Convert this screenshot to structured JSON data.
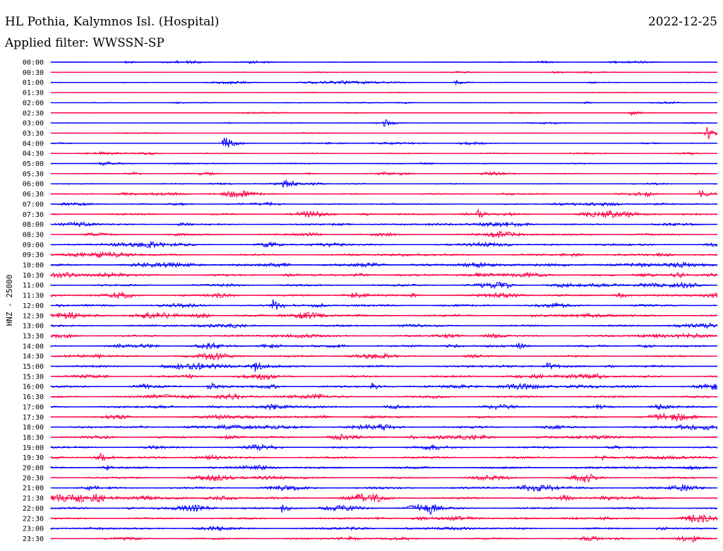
{
  "header": {
    "station": "HL Pothia, Kalymnos Isl. (Hospital)",
    "date": "2022-12-25",
    "filter": "Applied filter: WWSSN-SP"
  },
  "colors": {
    "even": "#0000ff",
    "odd": "#ff0044",
    "text": "#000000",
    "background": "#ffffff"
  },
  "chart_data": {
    "type": "line",
    "title": "HL Pothia, Kalymnos Isl. (Hospital)",
    "date": "2022-12-25",
    "ylabel": "HNZ - 25000",
    "trace_labels": [
      "00:00",
      "00:30",
      "01:00",
      "01:30",
      "02:00",
      "02:30",
      "03:00",
      "03:30",
      "04:00",
      "04:30",
      "05:00",
      "05:30",
      "06:00",
      "06:30",
      "07:00",
      "07:30",
      "08:00",
      "08:30",
      "09:00",
      "09:30",
      "10:00",
      "10:30",
      "11:00",
      "11:30",
      "12:00",
      "12:30",
      "13:00",
      "13:30",
      "14:00",
      "14:30",
      "15:00",
      "15:30",
      "16:00",
      "16:30",
      "17:00",
      "17:30",
      "18:00",
      "18:30",
      "19:00",
      "19:30",
      "20:00",
      "20:30",
      "21:00",
      "21:30",
      "22:00",
      "22:30",
      "23:00",
      "23:30"
    ],
    "trace_minutes": 30,
    "noise_level": [
      0.8,
      0.7,
      0.9,
      0.3,
      0.8,
      0.6,
      0.7,
      0.6,
      0.8,
      1.0,
      1.1,
      1.0,
      1.1,
      1.2,
      1.1,
      1.6,
      1.5,
      1.6,
      1.6,
      1.8,
      1.9,
      1.9,
      2.0,
      2.0,
      2.1,
      2.0,
      1.8,
      1.9,
      2.0,
      1.8,
      2.0,
      1.9,
      2.1,
      1.9,
      2.0,
      2.0,
      2.1,
      2.0,
      2.0,
      2.0,
      2.0,
      2.0,
      2.1,
      2.0,
      1.9,
      1.7,
      1.9,
      1.6
    ],
    "events": [
      {
        "trace": "00:00",
        "minute": 3.4,
        "amplitude": 3
      },
      {
        "trace": "01:00",
        "minute": 18.2,
        "amplitude": 4
      },
      {
        "trace": "02:30",
        "minute": 26.1,
        "amplitude": 4
      },
      {
        "trace": "03:00",
        "minute": 15.0,
        "amplitude": 6
      },
      {
        "trace": "03:30",
        "minute": 29.5,
        "amplitude": 9
      },
      {
        "trace": "04:00",
        "minute": 7.8,
        "amplitude": 11
      },
      {
        "trace": "06:00",
        "minute": 10.5,
        "amplitude": 7
      },
      {
        "trace": "06:30",
        "minute": 29.2,
        "amplitude": 6
      },
      {
        "trace": "07:30",
        "minute": 19.2,
        "amplitude": 7
      },
      {
        "trace": "12:00",
        "minute": 10.0,
        "amplitude": 9
      },
      {
        "trace": "14:00",
        "minute": 21.0,
        "amplitude": 5
      },
      {
        "trace": "15:00",
        "minute": 9.2,
        "amplitude": 6
      },
      {
        "trace": "15:00",
        "minute": 22.3,
        "amplitude": 5
      },
      {
        "trace": "16:00",
        "minute": 7.1,
        "amplitude": 7
      },
      {
        "trace": "16:00",
        "minute": 14.4,
        "amplitude": 6
      },
      {
        "trace": "21:30",
        "minute": 23.0,
        "amplitude": 5
      },
      {
        "trace": "22:00",
        "minute": 10.4,
        "amplitude": 6
      },
      {
        "trace": "22:00",
        "minute": 17.0,
        "amplitude": 5
      },
      {
        "trace": "23:30",
        "minute": 13.4,
        "amplitude": 5
      },
      {
        "trace": "23:30",
        "minute": 28.9,
        "amplitude": 5
      }
    ]
  }
}
